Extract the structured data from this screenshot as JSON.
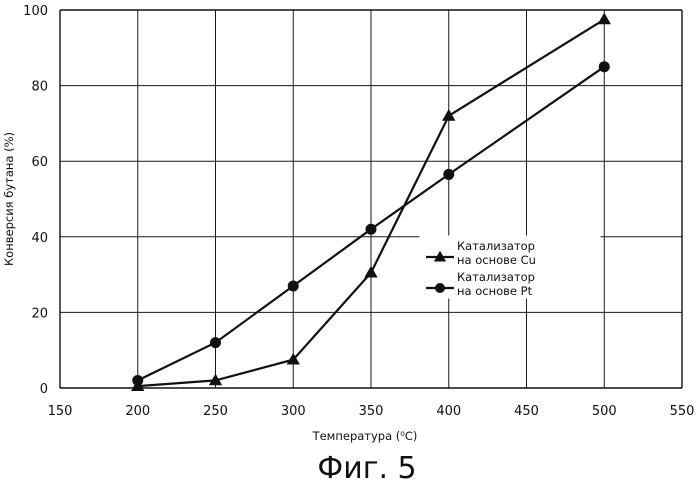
{
  "chart_data": {
    "type": "line",
    "xlabel": "Температура (⁰С)",
    "ylabel": "Конверсия бутана (%)",
    "xlim": [
      150,
      550
    ],
    "ylim": [
      0,
      100
    ],
    "x_ticks": [
      "150",
      "200",
      "250",
      "300",
      "350",
      "400",
      "450",
      "500",
      "550"
    ],
    "y_ticks": [
      "0",
      "20",
      "40",
      "60",
      "80",
      "100"
    ],
    "grid": true,
    "legend_position": "center-right",
    "series": [
      {
        "name": "Катализатор на основе Cu",
        "legend_lines": [
          "Катализатор",
          "на основе Cu"
        ],
        "marker": "triangle",
        "x": [
          200,
          250,
          300,
          350,
          400,
          500
        ],
        "y": [
          0.5,
          2,
          7.5,
          30.5,
          72,
          97.5
        ]
      },
      {
        "name": "Катализатор на основе Pt",
        "legend_lines": [
          "Катализатор",
          "на основе Pt"
        ],
        "marker": "circle",
        "x": [
          200,
          250,
          300,
          350,
          400,
          500
        ],
        "y": [
          2,
          12,
          27,
          42,
          56.5,
          85
        ]
      }
    ]
  },
  "caption": "Фиг. 5"
}
